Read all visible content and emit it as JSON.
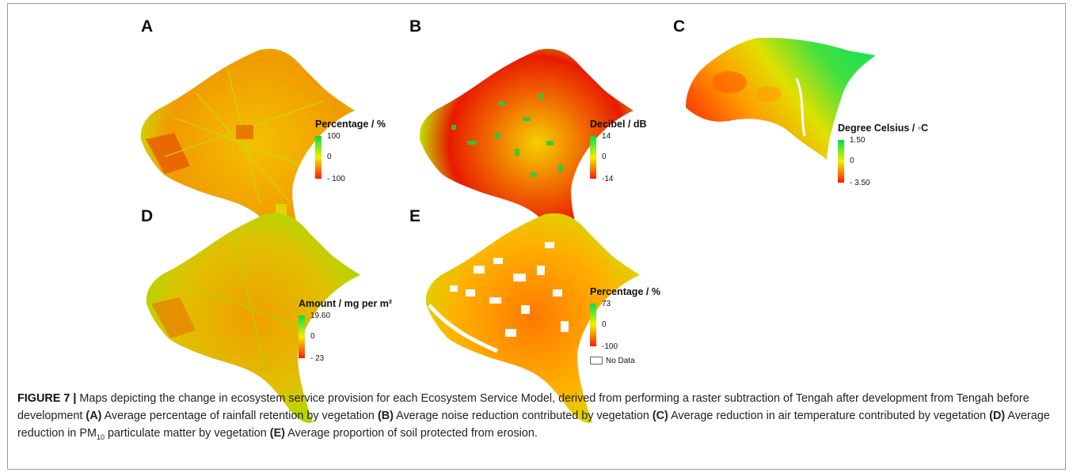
{
  "panels": [
    {
      "label": "A",
      "legend_title": "Percentage / %",
      "max": "100",
      "mid": "0",
      "min": "- 100"
    },
    {
      "label": "B",
      "legend_title": "Decibel / dB",
      "max": "14",
      "mid": "0",
      "min": "-14"
    },
    {
      "label": "C",
      "legend_title": "Degree Celsius / ◦C",
      "max": "1.50",
      "mid": "0",
      "min": "- 3.50"
    },
    {
      "label": "D",
      "legend_title": "Amount / mg per m²",
      "max": "19.60",
      "mid": "0",
      "min": "- 23"
    },
    {
      "label": "E",
      "legend_title": "Percentage / %",
      "max": "73",
      "mid": "0",
      "min": "-100",
      "nodata": "No Data"
    }
  ],
  "colors": {
    "high": "#00e04a",
    "mid": "#f0f000",
    "low": "#ff1a00"
  },
  "caption": {
    "figure_label": "FIGURE 7",
    "separator": "|",
    "intro": " Maps depicting the change in ecosystem service provision for each Ecosystem Service Model, derived from performing a raster subtraction of Tengah after development from Tengah before development ",
    "a_tag": "(A)",
    "a_text": " Average percentage of rainfall retention by vegetation ",
    "b_tag": "(B)",
    "b_text": " Average noise reduction contributed by vegetation ",
    "c_tag": "(C)",
    "c_text": " Average reduction in air temperature contributed by vegetation ",
    "d_tag": "(D)",
    "d_text_pre": " Average reduction in PM",
    "d_sub": "10",
    "d_text_post": " particulate matter by vegetation ",
    "e_tag": "(E)",
    "e_text": " Average proportion of soil protected from erosion."
  }
}
